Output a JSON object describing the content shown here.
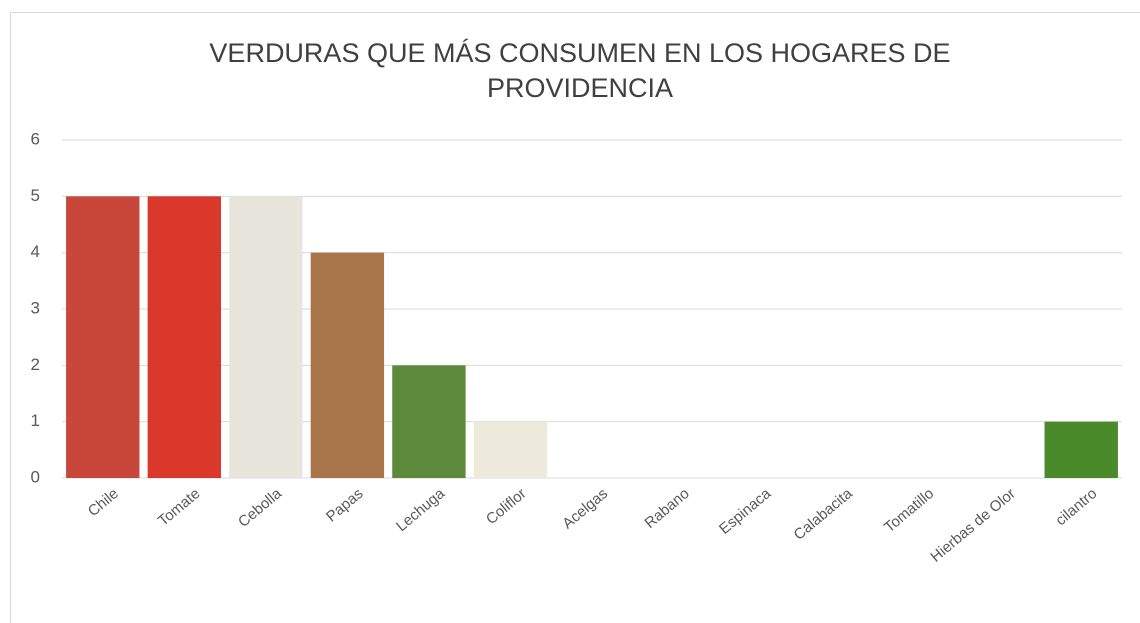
{
  "chart_data": {
    "type": "bar",
    "title": "VERDURAS QUE MÁS CONSUMEN EN LOS HOGARES DE PROVIDENCIA",
    "categories": [
      "Chile",
      "Tomate",
      "Cebolla",
      "Papas",
      "Lechuga",
      "Coliflor",
      "Acelgas",
      "Rabano",
      "Espinaca",
      "Calabacita",
      "Tomatillo",
      "Hierbas de Olor",
      "cilantro"
    ],
    "values": [
      5,
      5,
      5,
      4,
      2,
      1,
      0,
      0,
      0,
      0,
      0,
      0,
      1
    ],
    "colors": [
      "#c9473a",
      "#d9382a",
      "#e8e6dc",
      "#a8764a",
      "#5d8a3a",
      "#eeeadb",
      "#4f8a2e",
      "#c4344a",
      "#3f7a2a",
      "#8aa83a",
      "#7fa04a",
      "#5a8f3a",
      "#4b8a2a"
    ],
    "ylim": [
      0,
      6
    ],
    "yticks": [
      0,
      1,
      2,
      3,
      4,
      5,
      6
    ],
    "grid": true
  }
}
